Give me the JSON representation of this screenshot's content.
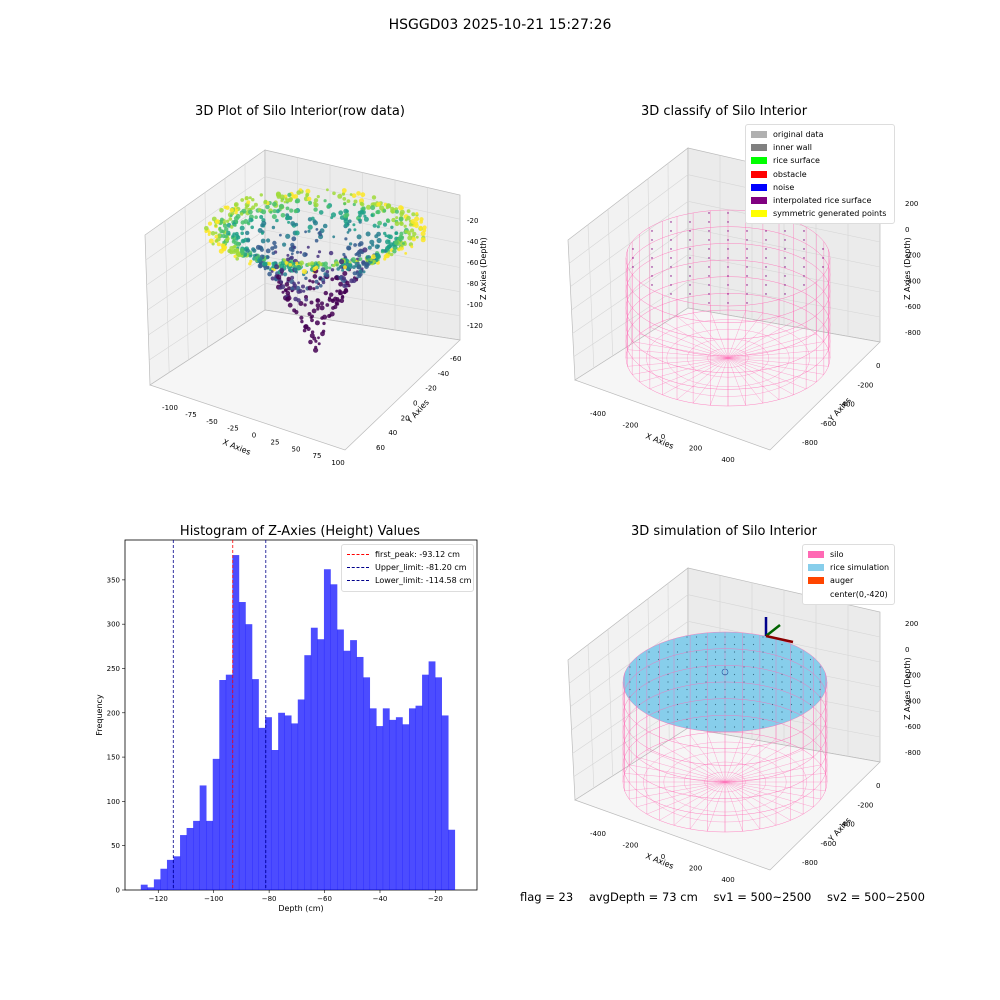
{
  "figure_title": "HSGGD03 2025-10-21 15:27:26",
  "footer": {
    "flag": "flag = 23",
    "avg_depth": "avgDepth = 73 cm",
    "sv1": "sv1 = 500~2500",
    "sv2": "sv2 = 500~2500"
  },
  "colors": {
    "original": "#b0b0b0",
    "inner_wall": "#808080",
    "rice_surface": "#00ff00",
    "obstacle": "#ff0000",
    "noise": "#0000ff",
    "interpolated": "#800080",
    "symmetric": "#ffff00",
    "silo": "#ff69b4",
    "rice_sim": "#87ceeb",
    "auger": "#ff4500",
    "histogram": "#0000ff",
    "peak_line": "#ff0000",
    "limit_line": "#00008b"
  },
  "chart_data": [
    {
      "type": "scatter",
      "subtype": "3d",
      "title": "3D Plot of Silo Interior(row data)",
      "xlabel": "X Axies",
      "ylabel": "Y Axies",
      "zlabel": "Z Axies (Depth)",
      "x_ticks": [
        "-100",
        "-75",
        "-50",
        "-25",
        "0",
        "25",
        "50",
        "75",
        "100"
      ],
      "y_ticks": [
        "-60",
        "-40",
        "-20",
        "0",
        "20",
        "40",
        "60"
      ],
      "z_ticks": [
        "-20",
        "-40",
        "-60",
        "-80",
        "-100",
        "-120"
      ],
      "colormap": "viridis"
    },
    {
      "type": "scatter",
      "subtype": "3d",
      "title": "3D classify of Silo Interior",
      "xlabel": "X Axies",
      "ylabel": "Y Axies",
      "zlabel": "Z Axies (Depth)",
      "x_ticks": [
        "-400",
        "-200",
        "0",
        "200",
        "400"
      ],
      "y_ticks": [
        "0",
        "-200",
        "-400",
        "-600",
        "-800"
      ],
      "z_ticks": [
        "200",
        "0",
        "-200",
        "-400",
        "-600",
        "-800"
      ],
      "legend": [
        "original data",
        "inner wall",
        "rice surface",
        "obstacle",
        "noise",
        "interpolated rice surface",
        "symmetric generated points"
      ],
      "legend_position": "top-right"
    },
    {
      "type": "bar",
      "subtype": "histogram",
      "title": "Histogram of Z-Axies (Height) Values",
      "xlabel": "Depth (cm)",
      "ylabel": "Frequency",
      "xlim": [
        -132,
        -5
      ],
      "ylim": [
        0,
        395
      ],
      "x_ticks": [
        -120,
        -100,
        -80,
        -60,
        -40,
        -20
      ],
      "y_ticks": [
        0,
        50,
        100,
        150,
        200,
        250,
        300,
        350
      ],
      "bin_start": -126.3,
      "bin_width": 2.36,
      "values": [
        6,
        3,
        12,
        24,
        34,
        38,
        62,
        70,
        78,
        118,
        78,
        148,
        237,
        243,
        378,
        325,
        300,
        238,
        183,
        195,
        158,
        200,
        197,
        188,
        215,
        265,
        296,
        283,
        362,
        345,
        294,
        270,
        282,
        263,
        240,
        205,
        185,
        205,
        192,
        195,
        187,
        205,
        208,
        243,
        258,
        240,
        197,
        68
      ],
      "lines": [
        {
          "label": "first_peak: -93.12 cm",
          "x": -93.12,
          "style": "peak"
        },
        {
          "label": "Upper_limit: -81.20 cm",
          "x": -81.2,
          "style": "limit"
        },
        {
          "label": "Lower_limit: -114.58 cm",
          "x": -114.58,
          "style": "limit"
        }
      ],
      "legend_position": "top-right"
    },
    {
      "type": "scatter",
      "subtype": "3d",
      "title": "3D simulation of Silo Interior",
      "xlabel": "X Axies",
      "ylabel": "Y Axies",
      "zlabel": "Z Axies (Depth)",
      "x_ticks": [
        "-400",
        "-200",
        "0",
        "200",
        "400"
      ],
      "y_ticks": [
        "0",
        "-200",
        "-400",
        "-600",
        "-800"
      ],
      "z_ticks": [
        "200",
        "0",
        "-200",
        "-400",
        "-600",
        "-800"
      ],
      "legend": [
        "silo",
        "rice simulation",
        "auger",
        "center(0,-420)"
      ],
      "legend_position": "top-right"
    }
  ]
}
